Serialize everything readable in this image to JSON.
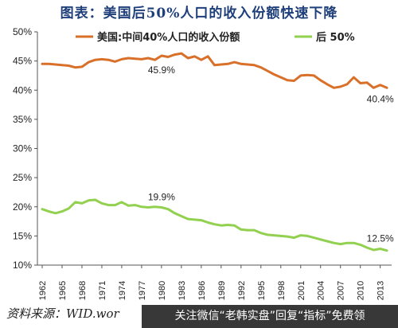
{
  "title": "图表：美国后50%人口的收入份额快速下降",
  "source": "资料来源：WID.wor",
  "watermark": "关注微信“老韩实盘”回复“指标”免费领",
  "colors": {
    "series1": "#d9702a",
    "series2": "#92d050",
    "axis": "#555555",
    "text": "#222222"
  },
  "chart_data": {
    "type": "line",
    "ylim": [
      10,
      50
    ],
    "yticks": [
      "10%",
      "15%",
      "20%",
      "25%",
      "30%",
      "35%",
      "40%",
      "45%",
      "50%"
    ],
    "ytick_values": [
      10,
      15,
      20,
      25,
      30,
      35,
      40,
      45,
      50
    ],
    "xticks": [
      "1962",
      "1965",
      "1968",
      "1971",
      "1974",
      "1977",
      "1980",
      "1983",
      "1986",
      "1989",
      "1992",
      "1995",
      "1998",
      "2001",
      "2004",
      "2007",
      "2010",
      "2013"
    ],
    "x": [
      1962,
      1963,
      1964,
      1965,
      1966,
      1967,
      1968,
      1969,
      1970,
      1971,
      1972,
      1973,
      1974,
      1975,
      1976,
      1977,
      1978,
      1979,
      1980,
      1981,
      1982,
      1983,
      1984,
      1985,
      1986,
      1987,
      1988,
      1989,
      1990,
      1991,
      1992,
      1993,
      1994,
      1995,
      1996,
      1997,
      1998,
      1999,
      2000,
      2001,
      2002,
      2003,
      2004,
      2005,
      2006,
      2007,
      2008,
      2009,
      2010,
      2011,
      2012,
      2013,
      2014
    ],
    "legend_position": "top",
    "series": [
      {
        "name": "美国:中间40%人口的收入份额",
        "values": [
          44.5,
          44.5,
          44.4,
          44.3,
          44.2,
          43.9,
          44.0,
          44.8,
          45.2,
          45.3,
          45.2,
          44.9,
          45.3,
          45.5,
          45.4,
          45.3,
          45.5,
          45.2,
          45.9,
          45.7,
          46.1,
          46.3,
          45.5,
          45.8,
          45.2,
          45.8,
          44.3,
          44.4,
          44.5,
          44.8,
          44.5,
          44.4,
          44.3,
          43.9,
          43.3,
          42.7,
          42.2,
          41.7,
          41.6,
          42.5,
          42.6,
          42.5,
          41.7,
          41.0,
          40.4,
          40.6,
          41.0,
          42.2,
          41.2,
          41.3,
          40.4,
          40.9,
          40.4
        ],
        "labels": [
          {
            "x": 1980,
            "text": "45.9%"
          },
          {
            "x": 2013,
            "text": "40.4%"
          }
        ]
      },
      {
        "name": "后 50%",
        "values": [
          19.6,
          19.2,
          18.9,
          19.2,
          19.7,
          20.8,
          20.6,
          21.1,
          21.2,
          20.6,
          20.3,
          20.3,
          20.8,
          20.2,
          20.3,
          20.0,
          19.9,
          20.0,
          19.9,
          19.6,
          18.9,
          18.4,
          17.9,
          17.8,
          17.7,
          17.3,
          17.0,
          16.8,
          16.9,
          16.8,
          16.1,
          16.0,
          16.0,
          15.5,
          15.2,
          15.1,
          15.0,
          14.9,
          14.7,
          15.1,
          15.0,
          14.7,
          14.4,
          14.1,
          13.8,
          13.6,
          13.8,
          13.8,
          13.5,
          13.0,
          12.6,
          12.8,
          12.5
        ],
        "labels": [
          {
            "x": 1980,
            "text": "19.9%"
          },
          {
            "x": 2013,
            "text": "12.5%"
          }
        ]
      }
    ]
  }
}
